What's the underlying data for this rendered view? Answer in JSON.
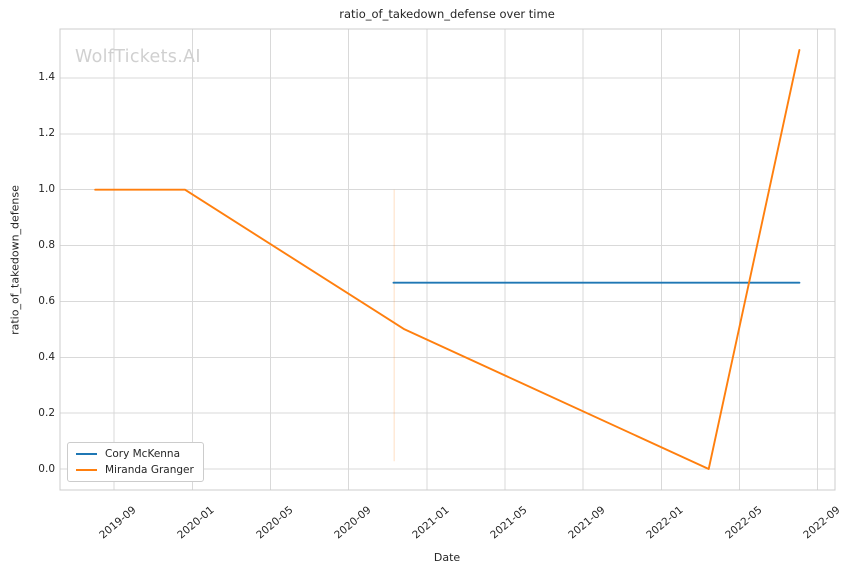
{
  "chart_data": {
    "type": "line",
    "title": "ratio_of_takedown_defense over time",
    "xlabel": "Date",
    "ylabel": "ratio_of_takedown_defense",
    "watermark": "WolfTickets.AI",
    "grid": true,
    "legend_position": "lower-left",
    "x_ticks": [
      "2019-09",
      "2020-01",
      "2020-05",
      "2020-09",
      "2021-01",
      "2021-05",
      "2021-09",
      "2022-01",
      "2022-05",
      "2022-09"
    ],
    "y_ticks": [
      "0.0",
      "0.2",
      "0.4",
      "0.6",
      "0.8",
      "1.0",
      "1.2",
      "1.4"
    ],
    "xlim": [
      "2019-06-08",
      "2022-09-28"
    ],
    "ylim": [
      -0.075,
      1.575
    ],
    "series": [
      {
        "name": "Cory McKenna",
        "color": "#1f77b4",
        "points": [
          [
            "2020-11-10",
            0.667
          ],
          [
            "2022-08-03",
            0.667
          ]
        ]
      },
      {
        "name": "Miranda Granger",
        "color": "#ff7f0e",
        "points": [
          [
            "2019-08-02",
            1.0
          ],
          [
            "2019-12-20",
            1.0
          ],
          [
            "2020-11-27",
            0.5
          ],
          [
            "2022-03-14",
            0.0
          ],
          [
            "2022-08-03",
            1.5
          ]
        ]
      }
    ],
    "annotations": [
      {
        "type": "vline",
        "date": "2020-11-11",
        "y_from": 0.028,
        "y_to": 1.0,
        "color": "#ff7f0e",
        "opacity": 0.25
      }
    ],
    "colors": {
      "grid": "#d9d9d9",
      "spine": "#cccccc",
      "text": "#262626",
      "watermark": "#d0d0d0",
      "background": "#ffffff",
      "series_blue": "#1f77b4",
      "series_orange": "#ff7f0e"
    }
  }
}
